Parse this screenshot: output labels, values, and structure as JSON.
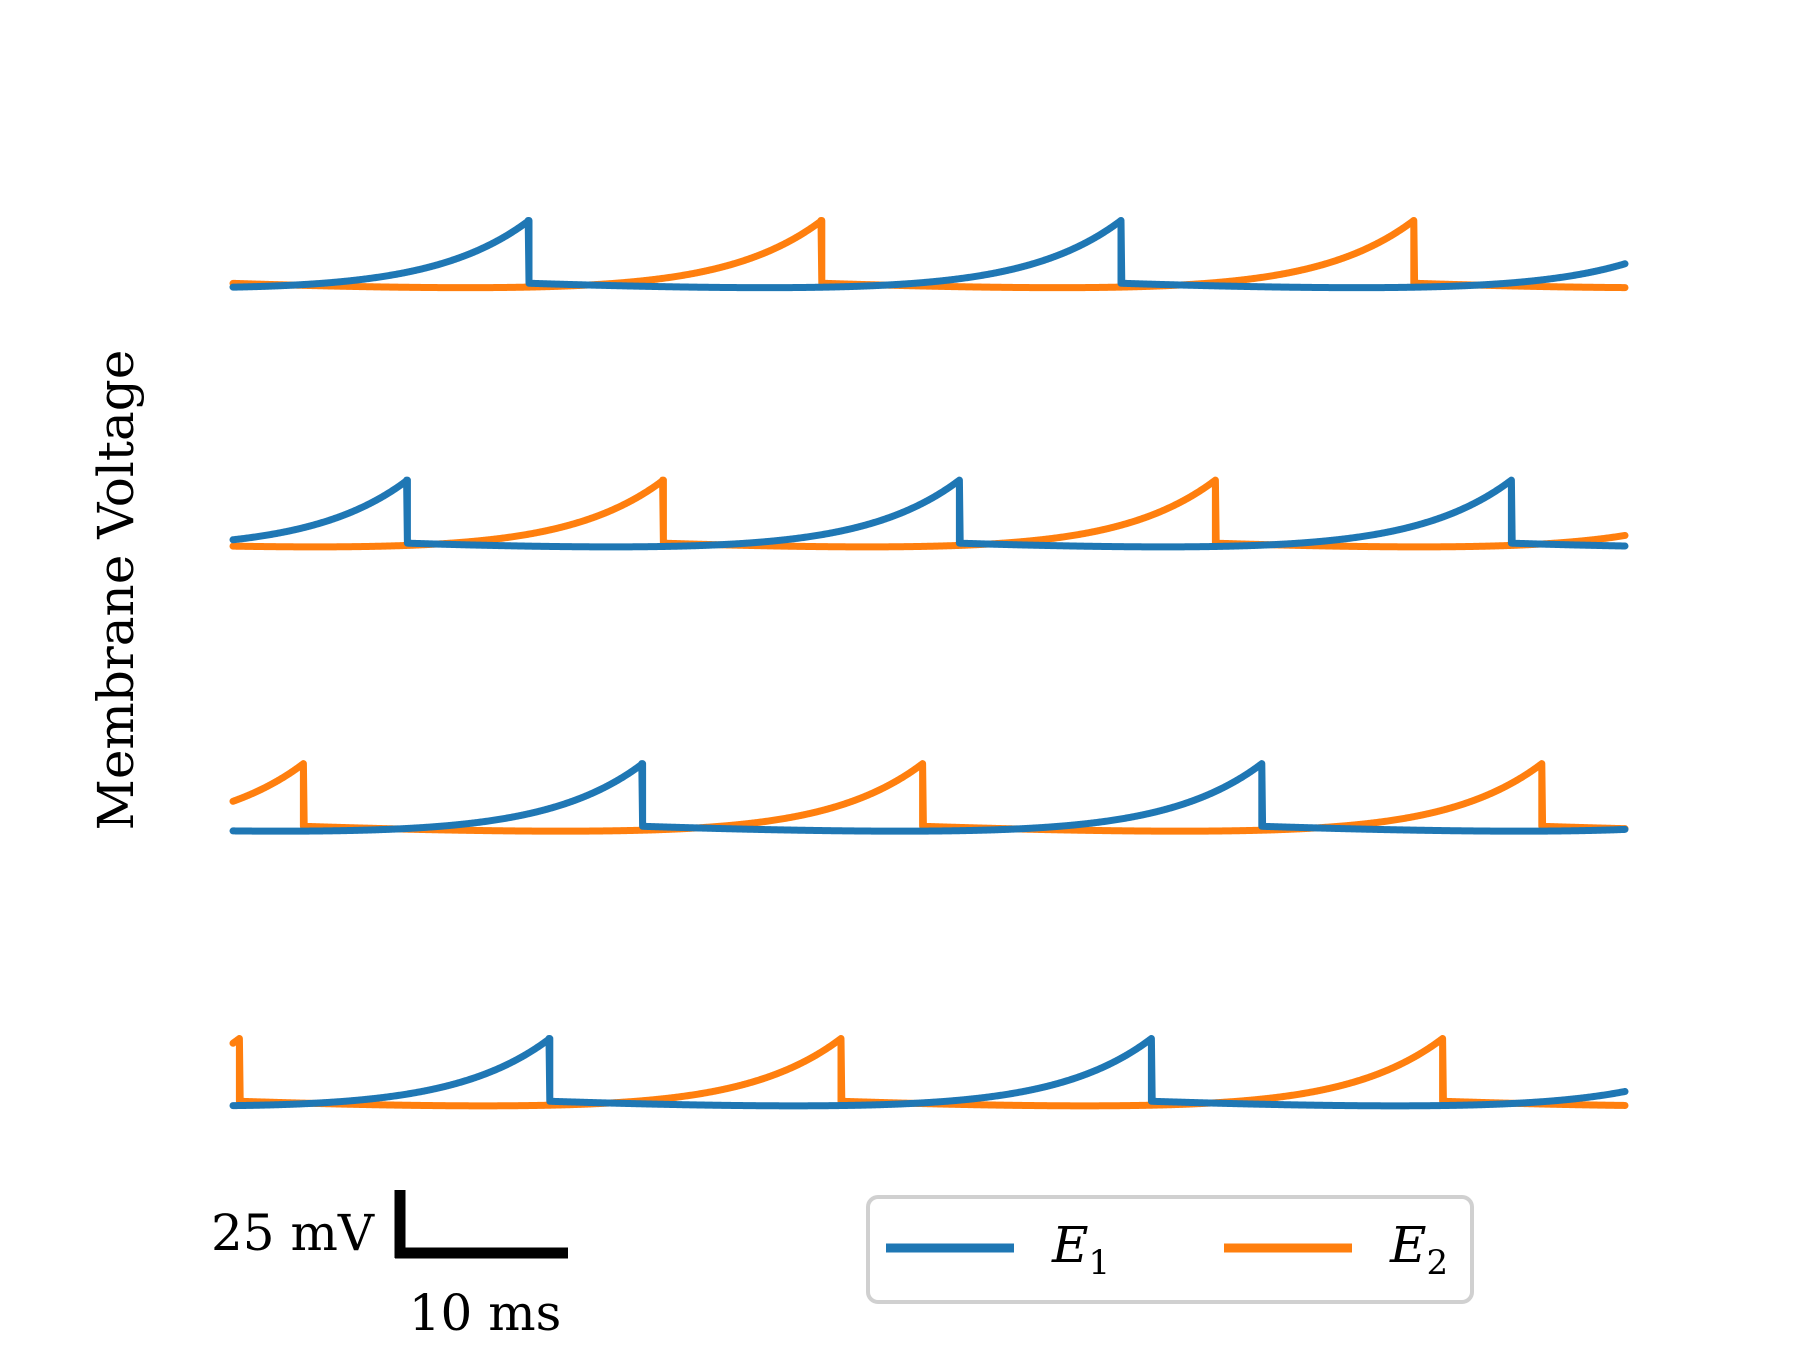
{
  "chart_data": {
    "type": "line",
    "ylabel": "Membrane Voltage",
    "colors": {
      "E1": "#1f77b4",
      "E2": "#ff7f0e"
    },
    "legend": {
      "placement": "bottom-right",
      "entries": [
        {
          "key": "E1",
          "base": "E",
          "sub": "1"
        },
        {
          "key": "E2",
          "base": "E",
          "sub": "2"
        }
      ]
    },
    "scale_bar": {
      "voltage_label": "25 mV",
      "time_label": "10 ms",
      "voltage_mV": 25,
      "time_ms": 10
    },
    "x_range_ms": [
      0,
      87
    ],
    "rest_mV": 0,
    "reset_mV": 5,
    "tau_ms": 25,
    "rise_ms": 6,
    "drive_mV": 27,
    "rows": [
      {
        "period_ms": 37,
        "E1": {
          "spikes_ms": [
            18.5,
            55.5
          ]
        },
        "E2": {
          "spikes_ms": [
            36.8,
            73.8
          ]
        }
      },
      {
        "period_ms": 34.5,
        "E1": {
          "spikes_ms": [
            10.9,
            45.4,
            79.9
          ]
        },
        "E2": {
          "spikes_ms": [
            26.9,
            61.4
          ]
        }
      },
      {
        "period_ms": 38.7,
        "E1": {
          "spikes_ms": [
            25.6,
            64.3
          ]
        },
        "E2": {
          "spikes_ms": [
            4.4,
            43.1,
            81.8
          ]
        }
      },
      {
        "period_ms": 37.6,
        "E1": {
          "spikes_ms": [
            19.8,
            57.4
          ]
        },
        "E2": {
          "spikes_ms": [
            0.4,
            38.0,
            75.6
          ]
        }
      }
    ]
  }
}
